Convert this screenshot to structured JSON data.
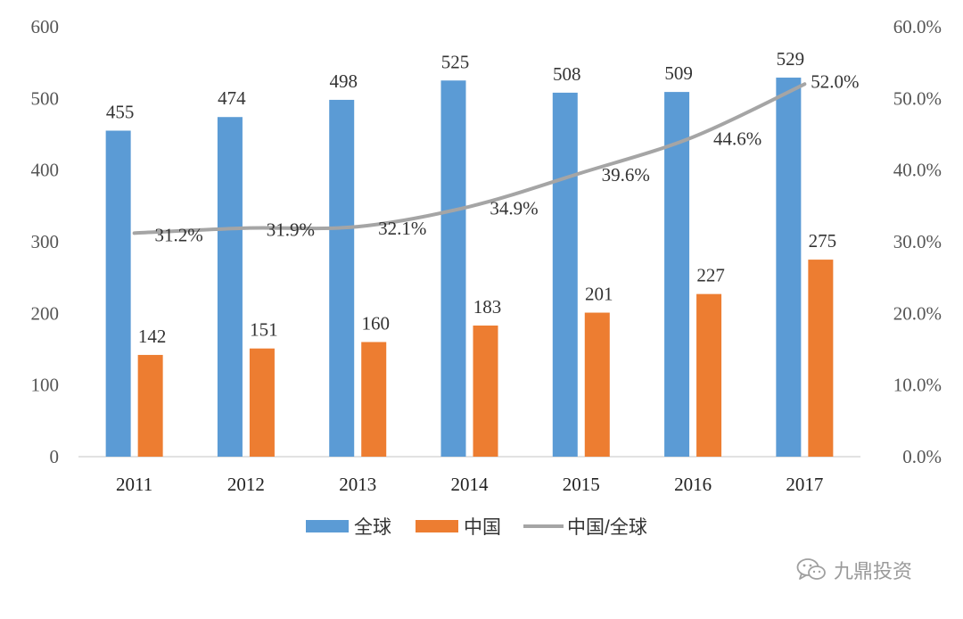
{
  "colors": {
    "global_bar": "#5b9bd5",
    "china_bar": "#ed7d31",
    "ratio_line": "#a5a5a5",
    "axis_line": "#d9d9d9"
  },
  "chart_data": {
    "type": "bar",
    "categories": [
      "2011",
      "2012",
      "2013",
      "2014",
      "2015",
      "2016",
      "2017"
    ],
    "series": [
      {
        "name": "全球",
        "type": "bar",
        "axis": "left",
        "values": [
          455,
          474,
          498,
          525,
          508,
          509,
          529
        ],
        "labels": [
          "455",
          "474",
          "498",
          "525",
          "508",
          "509",
          "529"
        ]
      },
      {
        "name": "中国",
        "type": "bar",
        "axis": "left",
        "values": [
          142,
          151,
          160,
          183,
          201,
          227,
          275
        ],
        "labels": [
          "142",
          "151",
          "160",
          "183",
          "201",
          "227",
          "275"
        ]
      },
      {
        "name": "中国/全球",
        "type": "line",
        "axis": "right",
        "values": [
          31.2,
          31.9,
          32.1,
          34.9,
          39.6,
          44.6,
          52.0
        ],
        "labels": [
          "31.2%",
          "31.9%",
          "32.1%",
          "34.9%",
          "39.6%",
          "44.6%",
          "52.0%"
        ]
      }
    ],
    "y_left": {
      "ylim": [
        0,
        600
      ],
      "ticks": [
        "0",
        "100",
        "200",
        "300",
        "400",
        "500",
        "600"
      ]
    },
    "y_right": {
      "ylim": [
        0,
        60
      ],
      "ticks": [
        "0.0%",
        "10.0%",
        "20.0%",
        "30.0%",
        "40.0%",
        "50.0%",
        "60.0%"
      ]
    },
    "title": "",
    "xlabel": "",
    "ylabel": "",
    "grid": false,
    "legend_position": "bottom-center"
  },
  "watermark": {
    "text": "九鼎投资",
    "icon": "wechat-icon"
  }
}
